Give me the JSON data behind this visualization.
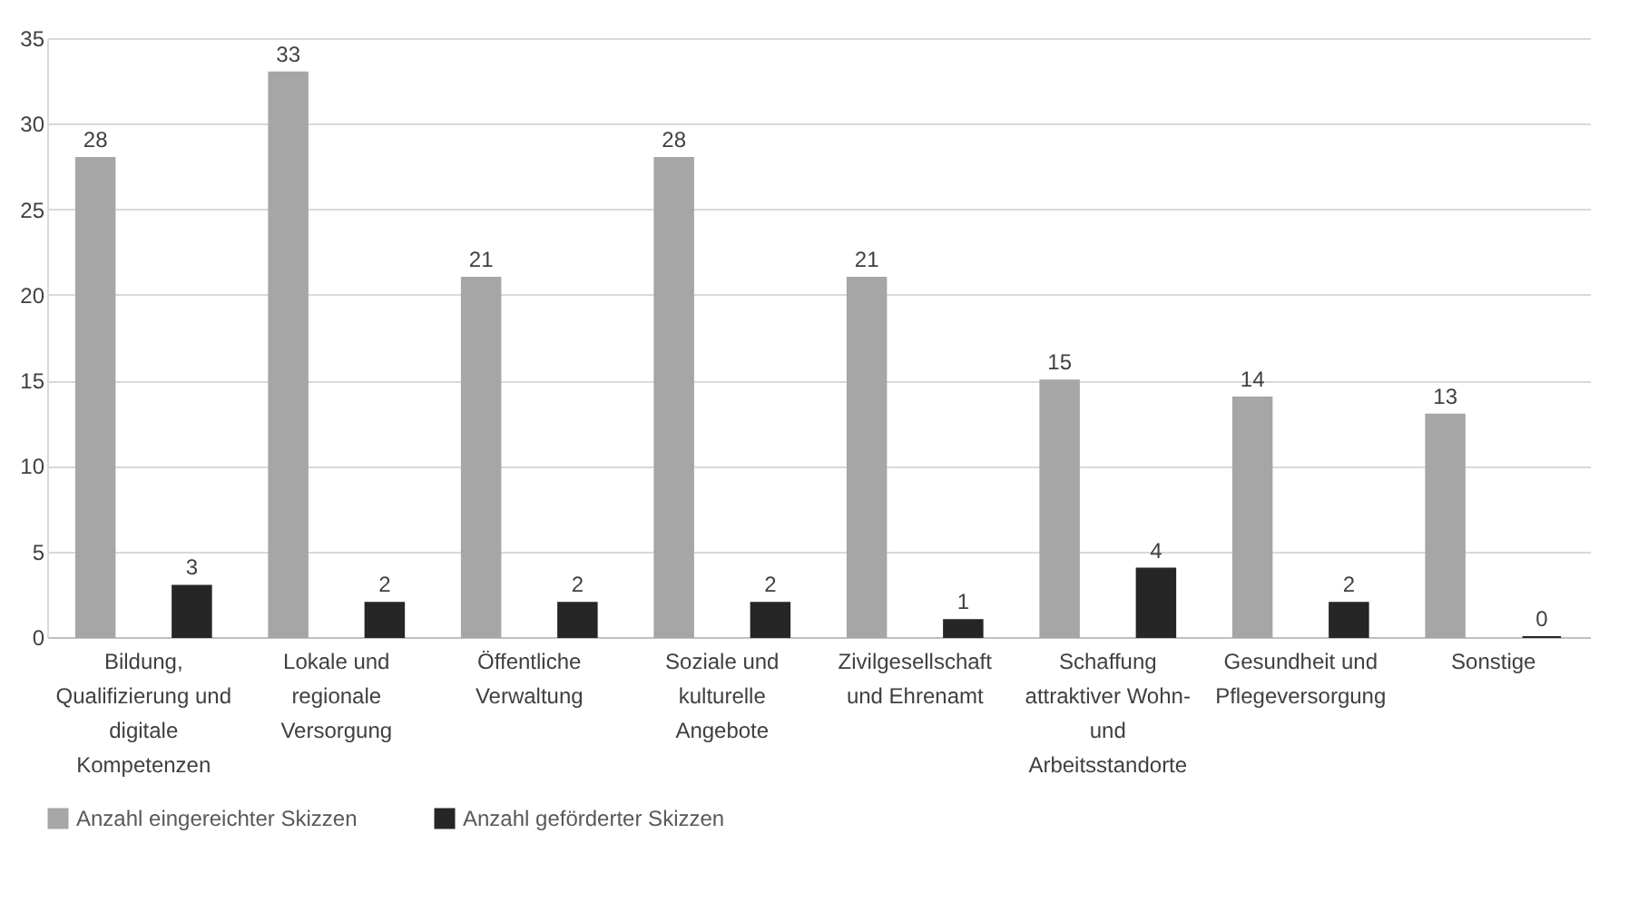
{
  "chart_data": {
    "type": "bar",
    "categories": [
      "Bildung, Qualifizierung und digitale Kompetenzen",
      "Lokale und regionale Versorgung",
      "Öffentliche Verwaltung",
      "Soziale und kulturelle Angebote",
      "Zivilgesellschaft und Ehrenamt",
      "Schaffung attraktiver Wohn- und Arbeitsstandorte",
      "Gesundheit und Pflegeversorgung",
      "Sonstige"
    ],
    "series": [
      {
        "name": "Anzahl eingereichter Skizzen",
        "color": "#a6a6a6",
        "values": [
          28,
          33,
          21,
          28,
          21,
          15,
          14,
          13
        ]
      },
      {
        "name": "Anzahl geförderter Skizzen",
        "color": "#262626",
        "values": [
          3,
          2,
          2,
          2,
          1,
          4,
          2,
          0
        ]
      }
    ],
    "ylim": [
      0,
      35
    ],
    "yticks": [
      0,
      5,
      10,
      15,
      20,
      25,
      30,
      35
    ],
    "grid": "y",
    "legend": "bottom",
    "data_labels": true
  }
}
